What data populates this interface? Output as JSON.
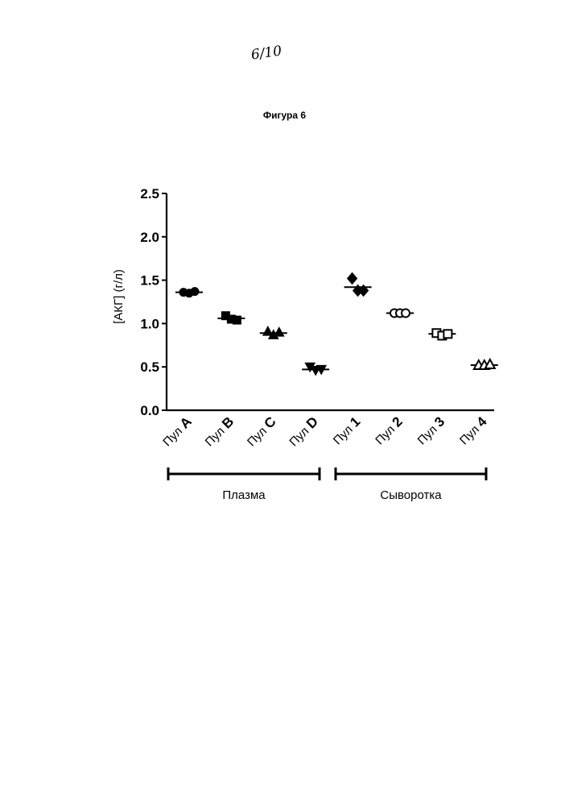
{
  "page": {
    "page_number": "6/10",
    "figure_title": "Фигура 6"
  },
  "chart_data": {
    "type": "scatter",
    "title": "Фигура 6",
    "ylabel": "[АКГ] (г/л)",
    "xlabel": "",
    "ylim": [
      0.0,
      2.5
    ],
    "yticks": [
      "0.0",
      "0.5",
      "1.0",
      "1.5",
      "2.0",
      "2.5"
    ],
    "grid": false,
    "categories": [
      {
        "prefix": "Пул",
        "id": "A"
      },
      {
        "prefix": "Пул",
        "id": "B"
      },
      {
        "prefix": "Пул",
        "id": "C"
      },
      {
        "prefix": "Пул",
        "id": "D"
      },
      {
        "prefix": "Пул",
        "id": "1"
      },
      {
        "prefix": "Пул",
        "id": "2"
      },
      {
        "prefix": "Пул",
        "id": "3"
      },
      {
        "prefix": "Пул",
        "id": "4"
      }
    ],
    "series": [
      {
        "category": "Пул A",
        "marker": "circle",
        "values": [
          1.36,
          1.35,
          1.37
        ],
        "mean": 1.36
      },
      {
        "category": "Пул B",
        "marker": "square",
        "values": [
          1.09,
          1.05,
          1.04
        ],
        "mean": 1.06
      },
      {
        "category": "Пул C",
        "marker": "triangle-up",
        "values": [
          0.91,
          0.87,
          0.9
        ],
        "mean": 0.89
      },
      {
        "category": "Пул D",
        "marker": "triangle-down",
        "values": [
          0.5,
          0.46,
          0.47
        ],
        "mean": 0.47
      },
      {
        "category": "Пул 1",
        "marker": "diamond",
        "values": [
          1.52,
          1.38,
          1.38
        ],
        "mean": 1.42
      },
      {
        "category": "Пул 2",
        "marker": "open-circle",
        "values": [
          1.12,
          1.12,
          1.12
        ],
        "mean": 1.12
      },
      {
        "category": "Пул 3",
        "marker": "open-square",
        "values": [
          0.89,
          0.86,
          0.88
        ],
        "mean": 0.88
      },
      {
        "category": "Пул 4",
        "marker": "open-triangle-up",
        "values": [
          0.52,
          0.52,
          0.53
        ],
        "mean": 0.52
      }
    ],
    "groups": [
      {
        "label": "Плазма",
        "from": 0,
        "to": 3
      },
      {
        "label": "Сыворотка",
        "from": 4,
        "to": 7
      }
    ]
  }
}
